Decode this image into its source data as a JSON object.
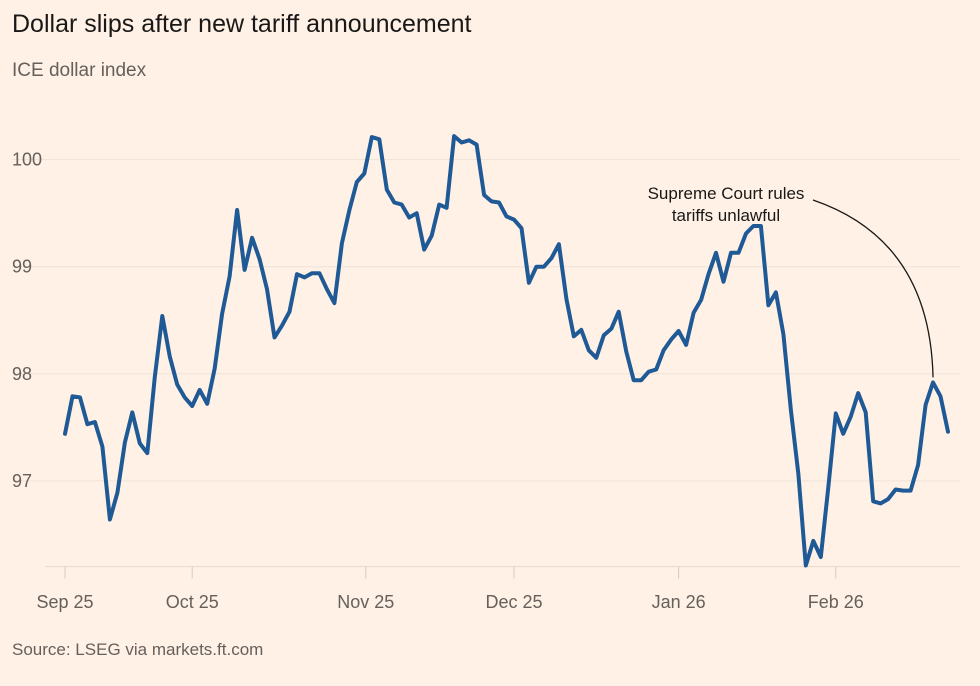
{
  "chart_data": {
    "type": "line",
    "title": "Dollar slips after new tariff announcement",
    "subtitle": "ICE dollar index",
    "source": "Source: LSEG via markets.ft.com",
    "xlabel": "",
    "ylabel": "",
    "ylim": [
      96.2,
      100.37
    ],
    "yticks": [
      97,
      98,
      99,
      100
    ],
    "xticks": [
      {
        "label": "Sep 25",
        "index": 0
      },
      {
        "label": "Oct 25",
        "index": 17
      },
      {
        "label": "Nov 25",
        "index": 40.2
      },
      {
        "label": "Dec 25",
        "index": 60
      },
      {
        "label": "Jan 26",
        "index": 82
      },
      {
        "label": "Feb 26",
        "index": 103
      }
    ],
    "grid": true,
    "line_color": "#1F5A96",
    "series": [
      {
        "name": "ICE dollar index",
        "values": [
          97.44,
          97.79,
          97.78,
          97.53,
          97.55,
          97.32,
          96.64,
          96.89,
          97.36,
          97.64,
          97.35,
          97.26,
          97.97,
          98.54,
          98.16,
          97.9,
          97.78,
          97.7,
          97.85,
          97.72,
          98.05,
          98.56,
          98.91,
          99.53,
          98.97,
          99.27,
          99.07,
          98.79,
          98.34,
          98.45,
          98.58,
          98.93,
          98.9,
          98.94,
          98.94,
          98.79,
          98.66,
          99.22,
          99.53,
          99.79,
          99.87,
          100.21,
          100.19,
          99.72,
          99.6,
          99.58,
          99.46,
          99.5,
          99.16,
          99.29,
          99.58,
          99.55,
          100.22,
          100.16,
          100.18,
          100.14,
          99.67,
          99.61,
          99.6,
          99.47,
          99.44,
          99.36,
          98.85,
          99.0,
          99.0,
          99.08,
          99.21,
          98.7,
          98.35,
          98.41,
          98.22,
          98.15,
          98.36,
          98.42,
          98.58,
          98.21,
          97.94,
          97.94,
          98.02,
          98.04,
          98.22,
          98.32,
          98.4,
          98.27,
          98.57,
          98.69,
          98.93,
          99.13,
          98.86,
          99.13,
          99.13,
          99.31,
          99.38,
          99.38,
          98.64,
          98.76,
          98.37,
          97.66,
          97.07,
          96.21,
          96.44,
          96.29,
          96.94,
          97.63,
          97.44,
          97.6,
          97.82,
          97.64,
          96.81,
          96.79,
          96.83,
          96.92,
          96.91,
          96.91,
          97.15,
          97.71,
          97.92,
          97.79,
          97.46
        ]
      }
    ],
    "annotations": [
      {
        "line1": "Supreme Court rules",
        "line2": "tariffs unlawful",
        "index": 116
      }
    ]
  }
}
